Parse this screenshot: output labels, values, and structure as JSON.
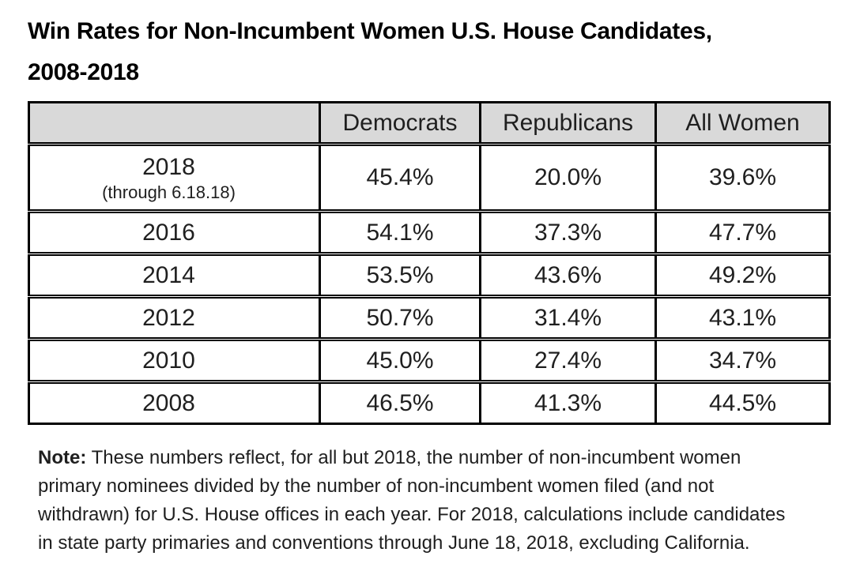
{
  "title": {
    "line1": "Win Rates for Non-Incumbent Women U.S. House Candidates,",
    "line2": "2008-2018"
  },
  "table": {
    "columns": [
      "",
      "Democrats",
      "Republicans",
      "All Women"
    ],
    "rows": [
      {
        "year": "2018",
        "year_note": "(through 6.18.18)",
        "democrats": "45.4%",
        "republicans": "20.0%",
        "all_women": "39.6%"
      },
      {
        "year": "2016",
        "democrats": "54.1%",
        "republicans": "37.3%",
        "all_women": "47.7%"
      },
      {
        "year": "2014",
        "democrats": "53.5%",
        "republicans": "43.6%",
        "all_women": "49.2%"
      },
      {
        "year": "2012",
        "democrats": "50.7%",
        "republicans": "31.4%",
        "all_women": "43.1%"
      },
      {
        "year": "2010",
        "democrats": "45.0%",
        "republicans": "27.4%",
        "all_women": "34.7%"
      },
      {
        "year": "2008",
        "democrats": "46.5%",
        "republicans": "41.3%",
        "all_women": "44.5%"
      }
    ]
  },
  "note": {
    "label": "Note:",
    "text": "These numbers reflect, for all but 2018, the number of non-incumbent women primary nominees divided by the number of non-incumbent women filed (and not withdrawn) for U.S. House offices in each year. For 2018, calculations include candidates in state party primaries and conventions through June 18, 2018, excluding California."
  },
  "colors": {
    "header_bg": "#d9d9d9",
    "border": "#000000",
    "text": "#1f1f1f"
  },
  "chart_data": {
    "type": "table",
    "title": "Win Rates for Non-Incumbent Women U.S. House Candidates, 2008-2018",
    "columns": [
      "Democrats",
      "Republicans",
      "All Women"
    ],
    "unit": "percent",
    "rows": [
      {
        "year": "2018 (through 6.18.18)",
        "democrats_pct": 45.4,
        "republicans_pct": 20.0,
        "all_women_pct": 39.6
      },
      {
        "year": "2016",
        "democrats_pct": 54.1,
        "republicans_pct": 37.3,
        "all_women_pct": 47.7
      },
      {
        "year": "2014",
        "democrats_pct": 53.5,
        "republicans_pct": 43.6,
        "all_women_pct": 49.2
      },
      {
        "year": "2012",
        "democrats_pct": 50.7,
        "republicans_pct": 31.4,
        "all_women_pct": 43.1
      },
      {
        "year": "2010",
        "democrats_pct": 45.0,
        "republicans_pct": 27.4,
        "all_women_pct": 34.7
      },
      {
        "year": "2008",
        "democrats_pct": 46.5,
        "republicans_pct": 41.3,
        "all_women_pct": 44.5
      }
    ],
    "note": "Note: These numbers reflect, for all but 2018, the number of non-incumbent women primary nominees divided by the number of non-incumbent women filed (and not withdrawn) for U.S. House offices in each year. For 2018, calculations include candidates in state party primaries and conventions through June 18, 2018, excluding California."
  }
}
